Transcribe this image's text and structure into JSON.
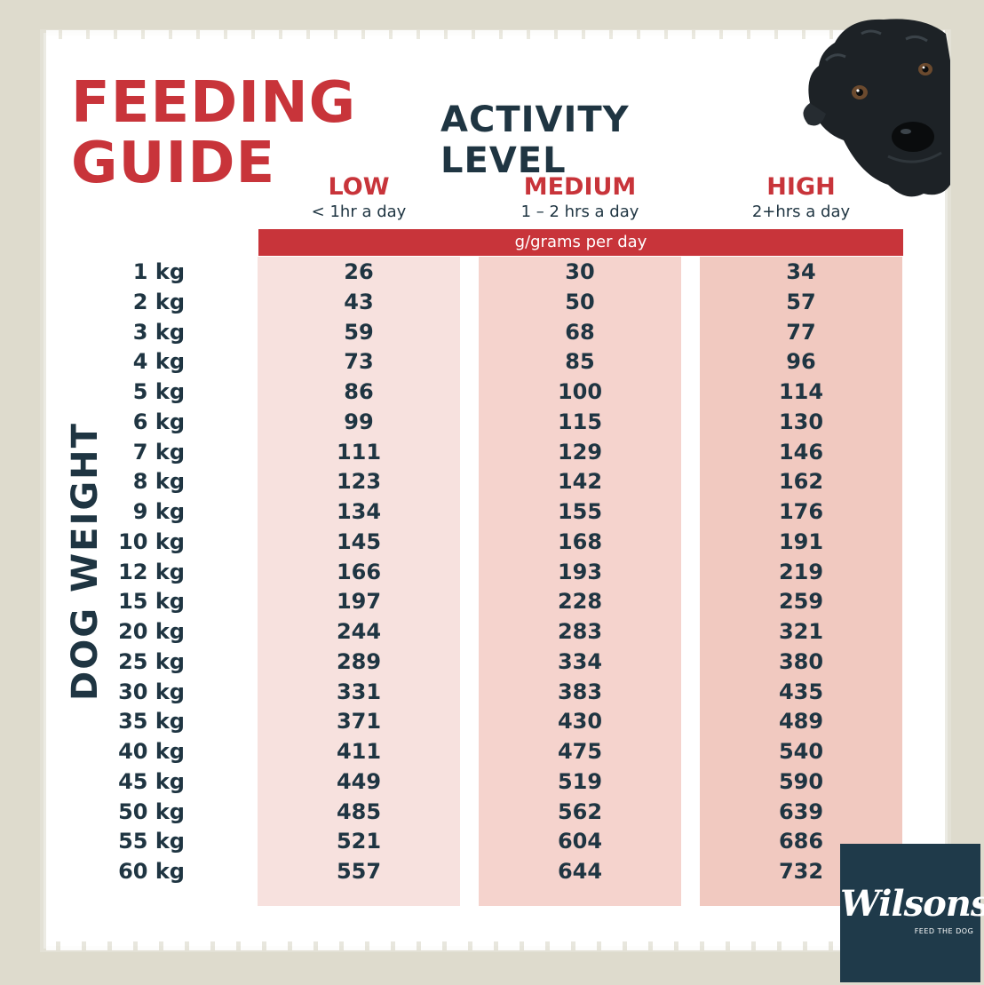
{
  "title_lines": [
    "FEEDING",
    "GUIDE"
  ],
  "activity_label": "ACTIVITY LEVEL",
  "side_label": "DOG WEIGHT",
  "unit_banner": "g/grams per day",
  "levels": [
    {
      "name": "LOW",
      "sub": "< 1hr a day"
    },
    {
      "name": "MEDIUM",
      "sub": "1 – 2 hrs a day"
    },
    {
      "name": "HIGH",
      "sub": "2+hrs a day"
    }
  ],
  "rows": [
    {
      "weight": "1 kg",
      "low": "26",
      "medium": "30",
      "high": "34"
    },
    {
      "weight": "2 kg",
      "low": "43",
      "medium": "50",
      "high": "57"
    },
    {
      "weight": "3 kg",
      "low": "59",
      "medium": "68",
      "high": "77"
    },
    {
      "weight": "4 kg",
      "low": "73",
      "medium": "85",
      "high": "96"
    },
    {
      "weight": "5 kg",
      "low": "86",
      "medium": "100",
      "high": "114"
    },
    {
      "weight": "6 kg",
      "low": "99",
      "medium": "115",
      "high": "130"
    },
    {
      "weight": "7 kg",
      "low": "111",
      "medium": "129",
      "high": "146"
    },
    {
      "weight": "8 kg",
      "low": "123",
      "medium": "142",
      "high": "162"
    },
    {
      "weight": "9 kg",
      "low": "134",
      "medium": "155",
      "high": "176"
    },
    {
      "weight": "10 kg",
      "low": "145",
      "medium": "168",
      "high": "191"
    },
    {
      "weight": "12 kg",
      "low": "166",
      "medium": "193",
      "high": "219"
    },
    {
      "weight": "15 kg",
      "low": "197",
      "medium": "228",
      "high": "259"
    },
    {
      "weight": "20 kg",
      "low": "244",
      "medium": "283",
      "high": "321"
    },
    {
      "weight": "25 kg",
      "low": "289",
      "medium": "334",
      "high": "380"
    },
    {
      "weight": "30 kg",
      "low": "331",
      "medium": "383",
      "high": "435"
    },
    {
      "weight": "35 kg",
      "low": "371",
      "medium": "430",
      "high": "489"
    },
    {
      "weight": "40 kg",
      "low": "411",
      "medium": "475",
      "high": "540"
    },
    {
      "weight": "45 kg",
      "low": "449",
      "medium": "519",
      "high": "590"
    },
    {
      "weight": "50 kg",
      "low": "485",
      "medium": "562",
      "high": "639"
    },
    {
      "weight": "55 kg",
      "low": "521",
      "medium": "604",
      "high": "686"
    },
    {
      "weight": "60 kg",
      "low": "557",
      "medium": "644",
      "high": "732"
    }
  ],
  "logo": {
    "brand": "Wilsons",
    "tagline": "FEED THE DOG"
  },
  "illustration": "black-dog-illustration",
  "colors": {
    "accent_red": "#c8343a",
    "navy": "#1f3542",
    "logo_bg": "#1f3a4a"
  }
}
